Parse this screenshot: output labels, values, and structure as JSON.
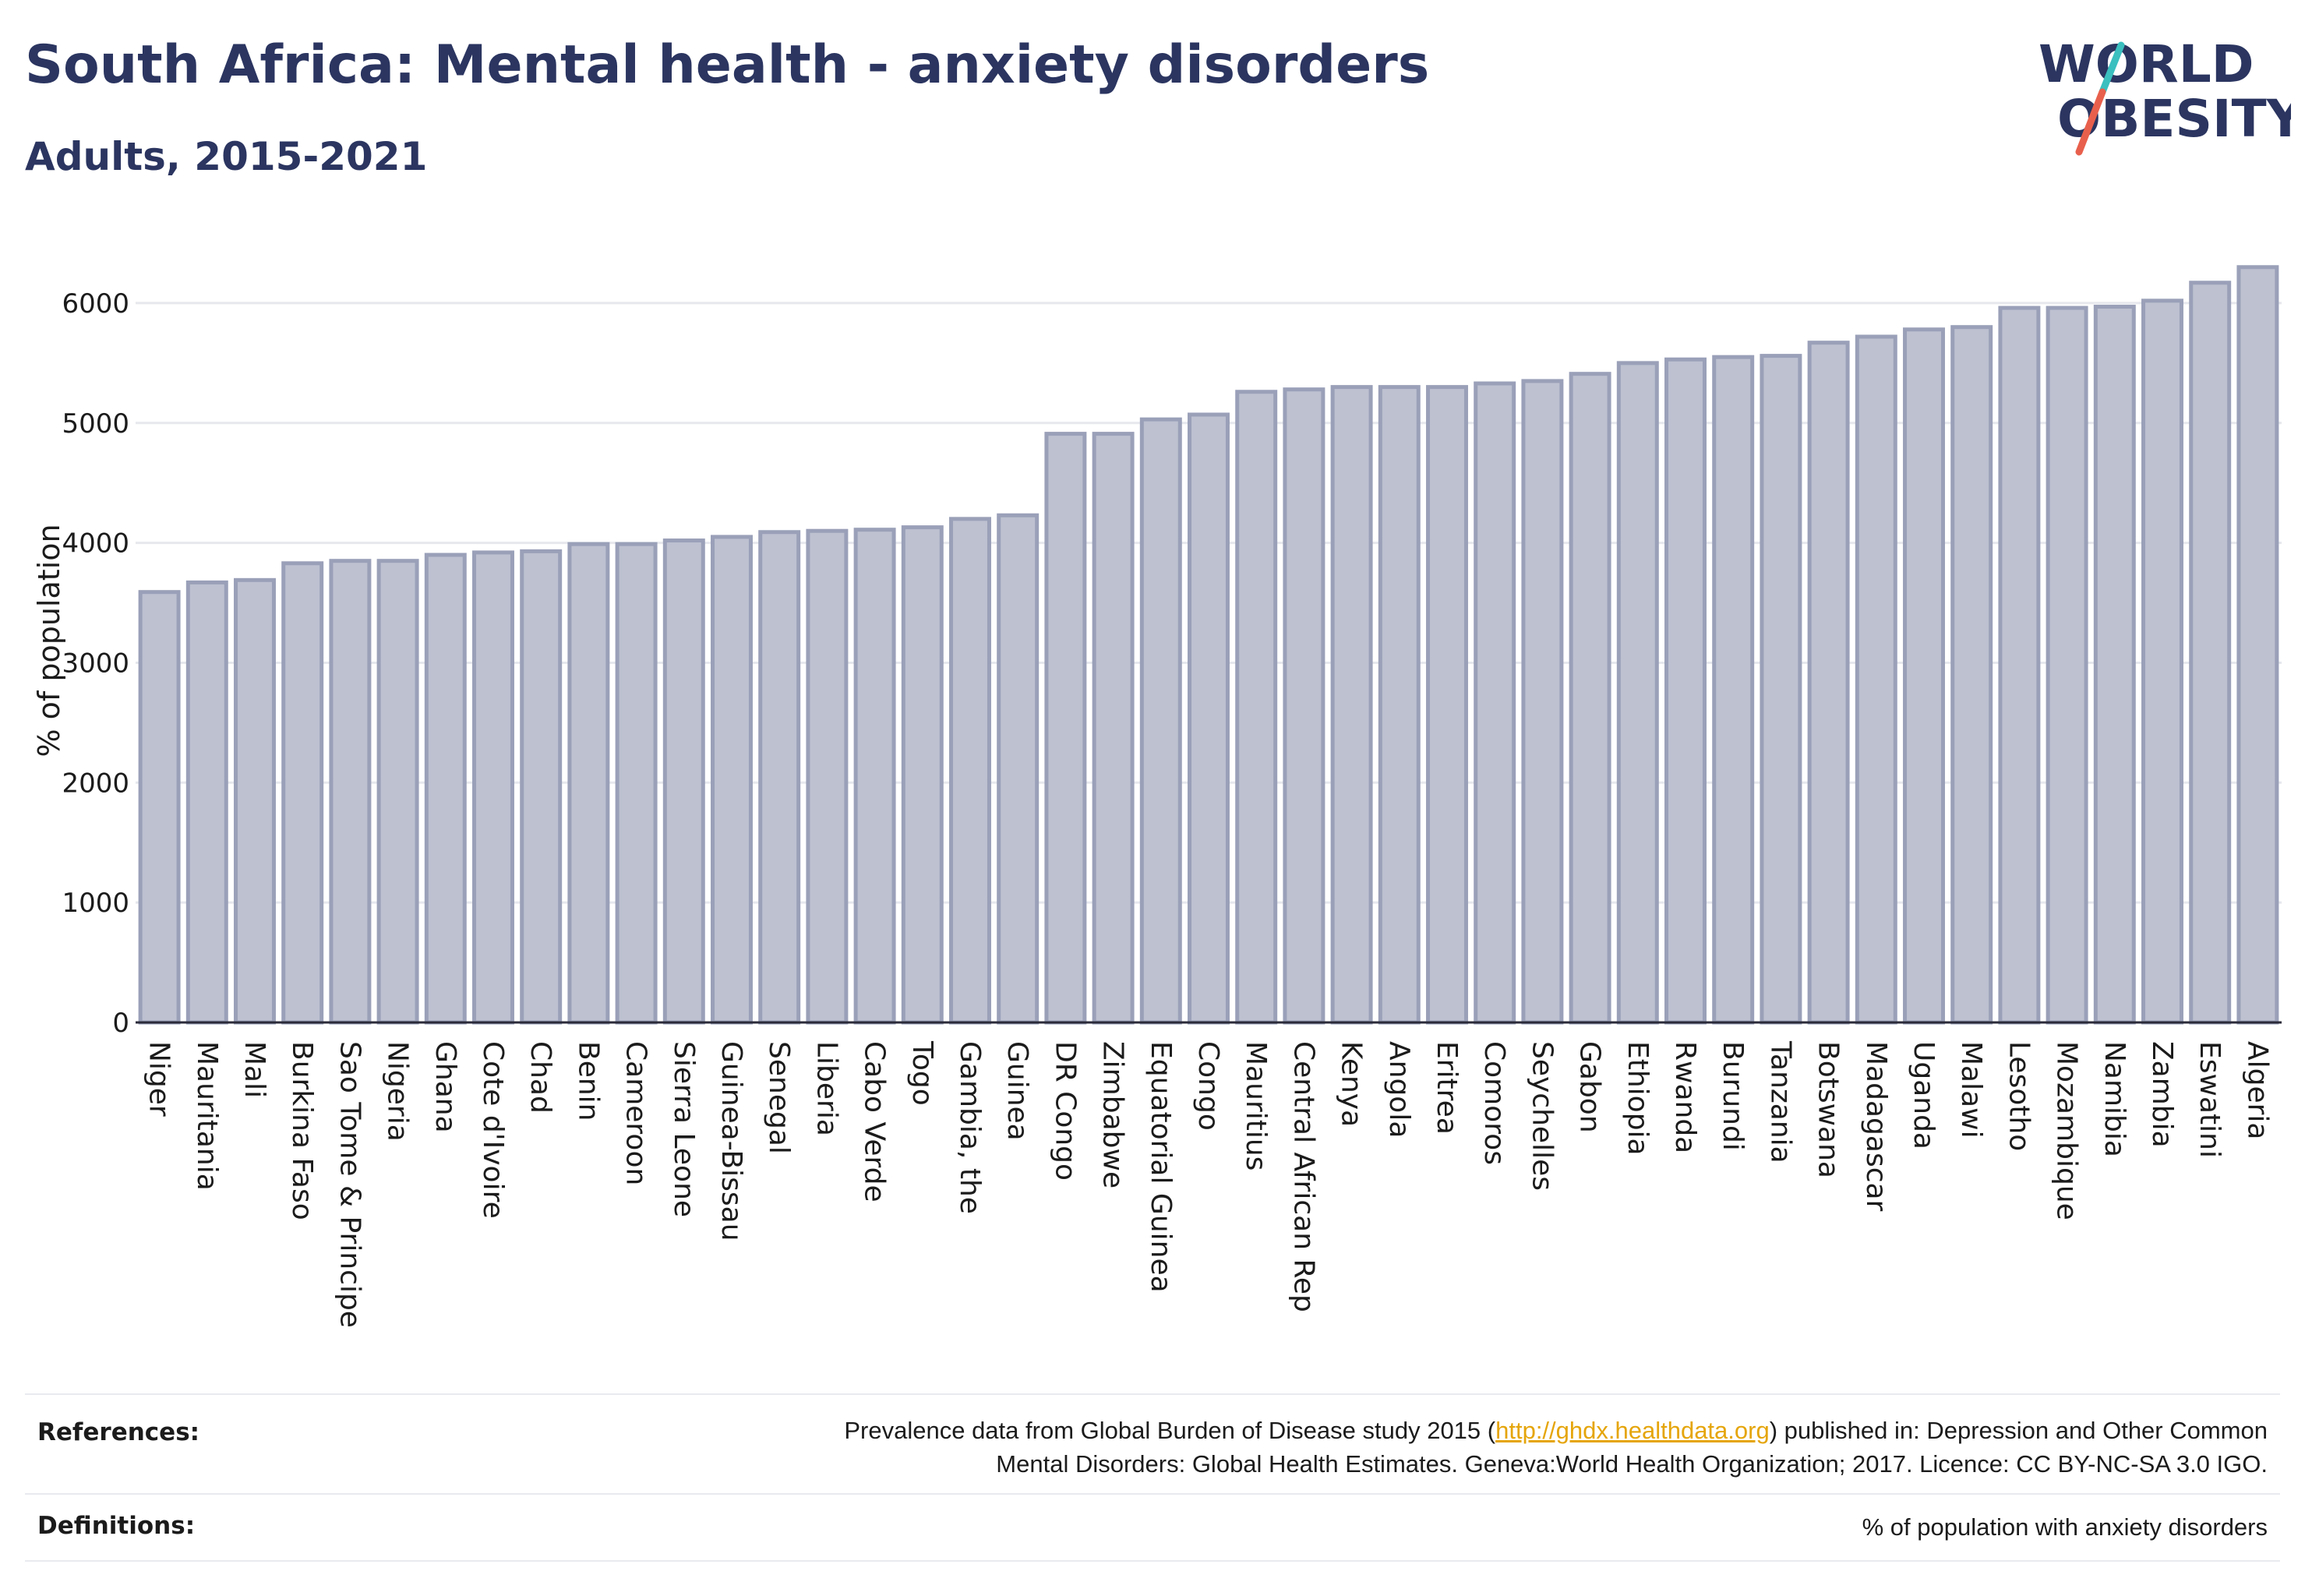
{
  "header": {
    "title": "South Africa: Mental health - anxiety disorders",
    "subtitle": "Adults, 2015-2021"
  },
  "logo": {
    "line1": "WORLD",
    "line2": "OBESITY",
    "colors": {
      "text": "#2b3560",
      "slash_top": "#3bbfbf",
      "slash_bottom": "#e8604c"
    }
  },
  "chart_data": {
    "type": "bar",
    "title": "South Africa: Mental health - anxiety disorders",
    "subtitle": "Adults, 2015-2021",
    "xlabel": "",
    "ylabel": "% of population",
    "ylim": [
      0,
      6500
    ],
    "yticks": [
      0,
      1000,
      2000,
      3000,
      4000,
      5000,
      6000
    ],
    "grid": true,
    "bar_color": "#bdc1d0",
    "bar_border": "#9aa0b8",
    "categories": [
      "Niger",
      "Mauritania",
      "Mali",
      "Burkina Faso",
      "Sao Tome & Principe",
      "Nigeria",
      "Ghana",
      "Cote d'Ivoire",
      "Chad",
      "Benin",
      "Cameroon",
      "Sierra Leone",
      "Guinea-Bissau",
      "Senegal",
      "Liberia",
      "Cabo Verde",
      "Togo",
      "Gambia, the",
      "Guinea",
      "DR Congo",
      "Zimbabwe",
      "Equatorial Guinea",
      "Congo",
      "Mauritius",
      "Central African Rep",
      "Kenya",
      "Angola",
      "Eritrea",
      "Comoros",
      "Seychelles",
      "Gabon",
      "Ethiopia",
      "Rwanda",
      "Burundi",
      "Tanzania",
      "Botswana",
      "Madagascar",
      "Uganda",
      "Malawi",
      "Lesotho",
      "Mozambique",
      "Namibia",
      "Zambia",
      "Eswatini",
      "Algeria"
    ],
    "values": [
      3590,
      3670,
      3690,
      3830,
      3850,
      3850,
      3900,
      3920,
      3930,
      3990,
      3990,
      4020,
      4050,
      4090,
      4100,
      4110,
      4130,
      4200,
      4230,
      4910,
      4910,
      5030,
      5070,
      5260,
      5280,
      5300,
      5300,
      5300,
      5330,
      5350,
      5410,
      5500,
      5530,
      5550,
      5560,
      5670,
      5720,
      5780,
      5800,
      5960,
      5960,
      5970,
      6020,
      6170,
      6300
    ]
  },
  "references": {
    "label": "References:",
    "text_before": "Prevalence data from Global Burden of Disease study 2015 (",
    "link": "http://ghdx.healthdata.org",
    "text_after": ") published in: Depression and Other Common",
    "line2": "Mental Disorders: Global Health Estimates. Geneva:World Health Organization; 2017. Licence: CC BY-NC-SA 3.0 IGO."
  },
  "definitions": {
    "label": "Definitions:",
    "text": "% of population with anxiety disorders"
  }
}
